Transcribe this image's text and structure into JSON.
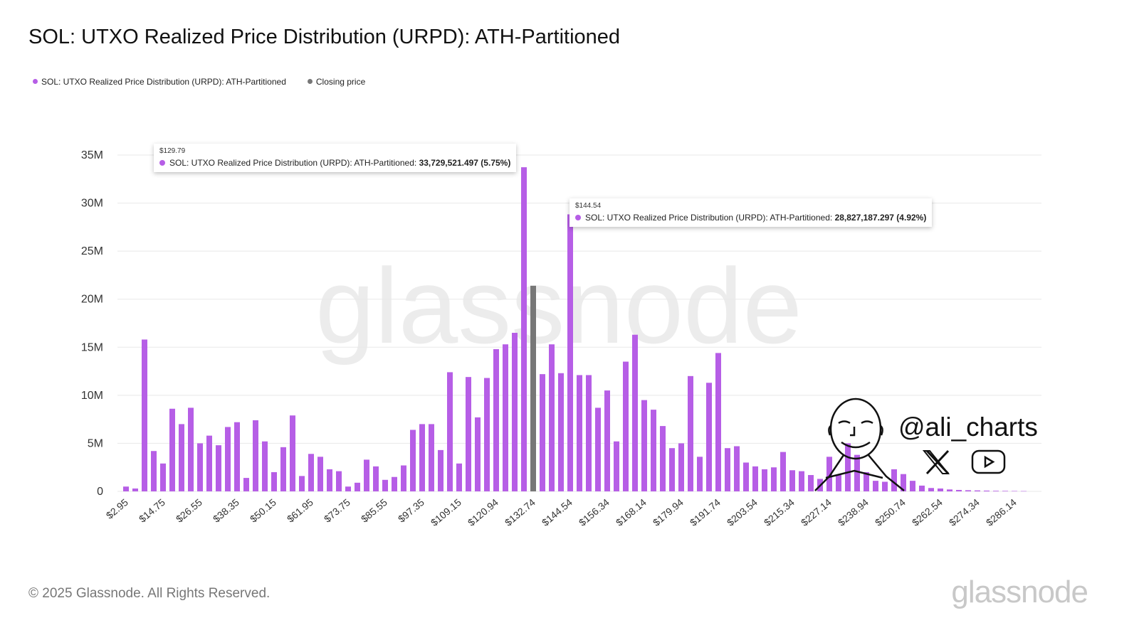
{
  "title": "SOL: UTXO Realized Price Distribution (URPD): ATH-Partitioned",
  "legend": [
    {
      "label": "SOL: UTXO Realized Price Distribution (URPD): ATH-Partitioned",
      "color": "#b65ee6"
    },
    {
      "label": "Closing price",
      "color": "#777777"
    }
  ],
  "footer": "© 2025 Glassnode. All Rights Reserved.",
  "logo": "glassnode",
  "watermark": "glassnode",
  "branding": {
    "handle": "@ali_charts",
    "icons": [
      "avatar-illustration",
      "x-logo-icon",
      "youtube-icon"
    ]
  },
  "tooltips": [
    {
      "price": "$129.79",
      "series": "SOL: UTXO Realized Price Distribution (URPD): ATH-Partitioned:",
      "value": "33,729,521.497 (5.75%)"
    },
    {
      "price": "$144.54",
      "series": "SOL: UTXO Realized Price Distribution (URPD): ATH-Partitioned:",
      "value": "28,827,187.297 (4.92%)"
    }
  ],
  "chart_data": {
    "type": "bar",
    "title": "SOL: UTXO Realized Price Distribution (URPD): ATH-Partitioned",
    "xlabel": "",
    "ylabel": "",
    "ylim": [
      0,
      35000000
    ],
    "yticks": [
      0,
      5000000,
      10000000,
      15000000,
      20000000,
      25000000,
      30000000,
      35000000
    ],
    "ytick_labels": [
      "0",
      "5M",
      "10M",
      "15M",
      "20M",
      "25M",
      "30M",
      "35M"
    ],
    "grid": true,
    "legend_position": "top-left",
    "colors": {
      "urpd": "#b65ee6",
      "closing": "#777777"
    },
    "closing_price_category": "$132.74",
    "xtick_labels": [
      "$2.95",
      "$14.75",
      "$26.55",
      "$38.35",
      "$50.15",
      "$61.95",
      "$73.75",
      "$85.55",
      "$97.35",
      "$109.15",
      "$120.94",
      "$132.74",
      "$144.54",
      "$156.34",
      "$168.14",
      "$179.94",
      "$191.74",
      "$203.54",
      "$215.34",
      "$227.14",
      "$238.94",
      "$250.74",
      "$262.54",
      "$274.34",
      "$286.14"
    ],
    "categories": [
      "$2.95",
      "$5.90",
      "$8.85",
      "$11.80",
      "$14.75",
      "$17.70",
      "$20.65",
      "$23.60",
      "$26.55",
      "$29.50",
      "$32.45",
      "$35.40",
      "$38.35",
      "$41.30",
      "$44.25",
      "$47.20",
      "$50.15",
      "$53.10",
      "$56.05",
      "$59.00",
      "$61.95",
      "$64.90",
      "$67.85",
      "$70.80",
      "$73.75",
      "$76.70",
      "$79.65",
      "$82.60",
      "$85.55",
      "$88.50",
      "$91.45",
      "$94.40",
      "$97.35",
      "$100.30",
      "$103.25",
      "$106.20",
      "$109.15",
      "$112.09",
      "$115.04",
      "$117.99",
      "$120.94",
      "$123.89",
      "$126.84",
      "$129.79",
      "$132.74",
      "$135.69",
      "$138.64",
      "$141.59",
      "$144.54",
      "$147.49",
      "$150.44",
      "$153.39",
      "$156.34",
      "$159.29",
      "$162.24",
      "$165.19",
      "$168.14",
      "$171.09",
      "$174.04",
      "$176.99",
      "$179.94",
      "$182.89",
      "$185.84",
      "$188.79",
      "$191.74",
      "$194.69",
      "$197.64",
      "$200.59",
      "$203.54",
      "$206.49",
      "$209.44",
      "$212.39",
      "$215.34",
      "$218.29",
      "$221.24",
      "$224.19",
      "$227.14",
      "$230.09",
      "$233.04",
      "$235.99",
      "$238.94",
      "$241.89",
      "$244.84",
      "$247.79",
      "$250.74",
      "$253.69",
      "$256.64",
      "$259.59",
      "$262.54",
      "$265.49",
      "$268.44",
      "$271.39",
      "$274.34",
      "$277.29",
      "$280.24",
      "$283.19",
      "$286.14",
      "$289.09"
    ],
    "series": [
      {
        "name": "SOL: UTXO Realized Price Distribution (URPD): ATH-Partitioned",
        "values": [
          500000,
          300000,
          15800000,
          4200000,
          2900000,
          8600000,
          7000000,
          8700000,
          5000000,
          5800000,
          4800000,
          6700000,
          7200000,
          1400000,
          7400000,
          5200000,
          2000000,
          4600000,
          7900000,
          1600000,
          3900000,
          3600000,
          2300000,
          2100000,
          500000,
          900000,
          3300000,
          2600000,
          1200000,
          1500000,
          2700000,
          6400000,
          7000000,
          7000000,
          4300000,
          12400000,
          2900000,
          11900000,
          7700000,
          11800000,
          14800000,
          15300000,
          16500000,
          33729521.497,
          21400000,
          12200000,
          15300000,
          12300000,
          28827187.297,
          12100000,
          12100000,
          8700000,
          10500000,
          5200000,
          13500000,
          16300000,
          9500000,
          8500000,
          6800000,
          4500000,
          5000000,
          12000000,
          3600000,
          11300000,
          14400000,
          4500000,
          4700000,
          3000000,
          2600000,
          2300000,
          2500000,
          4100000,
          2200000,
          2100000,
          1700000,
          1300000,
          3600000,
          1700000,
          5000000,
          3800000,
          2000000,
          1100000,
          1000000,
          2300000,
          1800000,
          1100000,
          600000,
          350000,
          300000,
          200000,
          150000,
          120000,
          100000,
          80000,
          60000,
          50000,
          40000,
          30000
        ]
      }
    ]
  }
}
